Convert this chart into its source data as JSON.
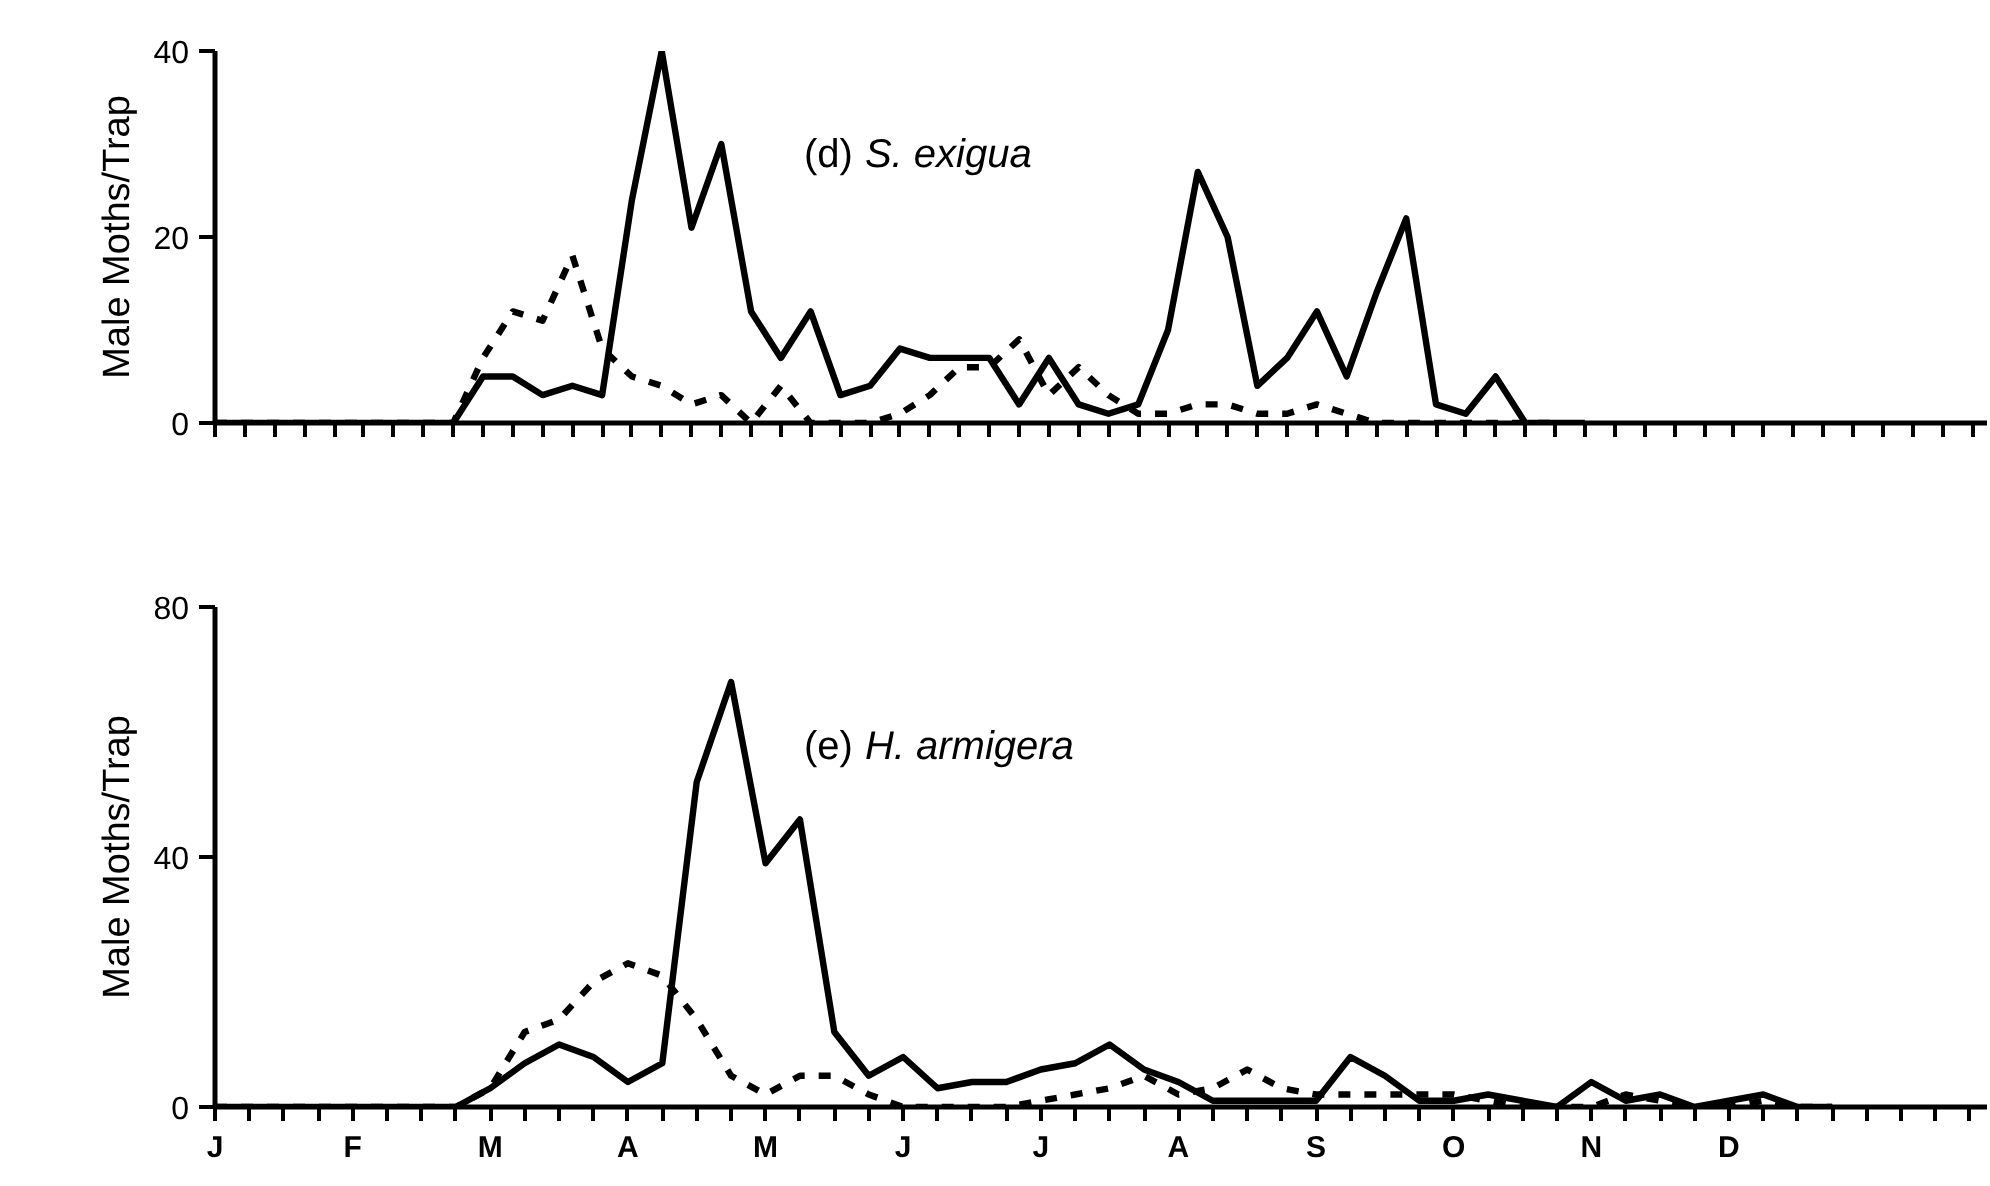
{
  "chart_data": [
    {
      "type": "line",
      "title": "(d) S. exigua",
      "ylabel": "Male Moths/Trap",
      "ylim": [
        0,
        40
      ],
      "yticks": [
        0,
        20,
        40
      ],
      "categories": [
        null,
        null,
        null,
        null,
        null,
        null,
        null,
        null,
        null,
        null,
        null,
        null,
        null,
        null,
        null,
        null,
        null,
        null,
        null,
        null,
        null,
        null,
        null,
        null,
        null,
        null,
        null,
        null,
        null,
        null,
        null,
        null,
        null,
        null,
        null,
        null,
        null,
        null,
        null,
        null,
        null,
        null,
        null,
        null,
        null,
        null,
        null,
        null,
        null,
        null,
        null,
        null,
        null,
        null,
        null,
        null,
        null,
        null,
        null,
        null
      ],
      "grid": false,
      "marker": "none",
      "series": [
        {
          "color": "#000000",
          "line_style": "solid",
          "values": [
            0,
            0,
            0,
            0,
            0,
            0,
            0,
            0,
            0,
            5,
            5,
            3,
            4,
            3,
            24,
            40,
            21,
            30,
            12,
            7,
            12,
            3,
            4,
            8,
            7,
            7,
            7,
            2,
            7,
            2,
            1,
            2,
            10,
            27,
            20,
            4,
            7,
            12,
            5,
            14,
            22,
            2,
            1,
            5,
            0,
            0,
            0,
            null,
            null,
            null,
            null,
            null,
            null,
            null,
            null,
            null,
            null,
            null,
            null,
            null
          ]
        },
        {
          "color": "#000000",
          "line_style": "dashed",
          "values": [
            0,
            0,
            0,
            0,
            0,
            0,
            0,
            0,
            0,
            7,
            12,
            11,
            18,
            8,
            5,
            4,
            2,
            3,
            0,
            4,
            0,
            0,
            0,
            1,
            3,
            6,
            6,
            9,
            3,
            6,
            3,
            1,
            1,
            2,
            2,
            1,
            1,
            2,
            1,
            0,
            0,
            0,
            0,
            0,
            0,
            0,
            null,
            null,
            null,
            null,
            null,
            null,
            null,
            null,
            null,
            null,
            null,
            null,
            null,
            null
          ]
        }
      ]
    },
    {
      "type": "line",
      "title": "(e) H. armigera",
      "ylabel": "Male Moths/Trap",
      "ylim": [
        0,
        80
      ],
      "yticks": [
        0,
        40,
        80
      ],
      "categories": [
        "J",
        null,
        null,
        null,
        "F",
        null,
        null,
        null,
        "M",
        null,
        null,
        null,
        "A",
        null,
        null,
        null,
        "M",
        null,
        null,
        null,
        "J",
        null,
        null,
        null,
        "J",
        null,
        null,
        null,
        "A",
        null,
        null,
        null,
        "S",
        null,
        null,
        null,
        "O",
        null,
        null,
        null,
        "N",
        null,
        null,
        null,
        "D",
        null,
        null,
        null,
        null,
        null,
        null,
        null
      ],
      "grid": false,
      "marker": "none",
      "series": [
        {
          "color": "#000000",
          "line_style": "solid",
          "values": [
            0,
            0,
            0,
            0,
            0,
            0,
            0,
            0,
            3,
            7,
            10,
            8,
            4,
            7,
            52,
            68,
            39,
            46,
            12,
            5,
            8,
            3,
            4,
            4,
            6,
            7,
            10,
            6,
            4,
            1,
            1,
            1,
            1,
            8,
            5,
            1,
            1,
            2,
            1,
            0,
            4,
            1,
            2,
            0,
            1,
            2,
            0,
            0,
            null,
            null,
            null,
            null
          ]
        },
        {
          "color": "#000000",
          "line_style": "dashed",
          "values": [
            0,
            0,
            0,
            0,
            0,
            0,
            0,
            0,
            3,
            12,
            14,
            20,
            23,
            21,
            14,
            5,
            2,
            5,
            5,
            2,
            0,
            0,
            0,
            0,
            1,
            2,
            3,
            5,
            2,
            3,
            6,
            3,
            2,
            2,
            2,
            2,
            2,
            1,
            0,
            0,
            0,
            2,
            1,
            0,
            0,
            1,
            0,
            0,
            null,
            null,
            null,
            null
          ]
        }
      ]
    }
  ]
}
